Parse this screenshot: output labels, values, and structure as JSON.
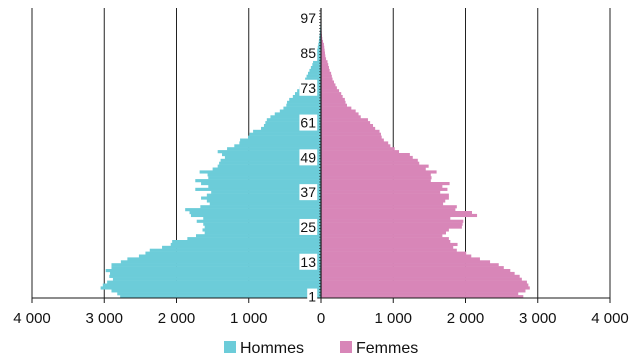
{
  "chart_data": {
    "type": "bar",
    "orientation": "horizontal",
    "subtype": "population-pyramid",
    "ages": [
      1,
      2,
      3,
      4,
      5,
      6,
      7,
      8,
      9,
      10,
      11,
      12,
      13,
      14,
      15,
      16,
      17,
      18,
      19,
      20,
      21,
      22,
      23,
      24,
      25,
      26,
      27,
      28,
      29,
      30,
      31,
      32,
      33,
      34,
      35,
      36,
      37,
      38,
      39,
      40,
      41,
      42,
      43,
      44,
      45,
      46,
      47,
      48,
      49,
      50,
      51,
      52,
      53,
      54,
      55,
      56,
      57,
      58,
      59,
      60,
      61,
      62,
      63,
      64,
      65,
      66,
      67,
      68,
      69,
      70,
      71,
      72,
      73,
      74,
      75,
      76,
      77,
      78,
      79,
      80,
      81,
      82,
      83,
      84,
      85,
      86,
      87,
      88,
      89,
      90,
      91,
      92,
      93,
      94,
      95,
      96,
      97,
      98,
      99,
      100
    ],
    "age_tick_labels": [
      "1",
      "13",
      "25",
      "37",
      "49",
      "61",
      "73",
      "85",
      "97"
    ],
    "x_tick_labels": [
      "4 000",
      "3 000",
      "2 000",
      "1 000",
      "0",
      "1 000",
      "2 000",
      "3 000",
      "4 000"
    ],
    "xlim": [
      -4000,
      4000
    ],
    "grid": true,
    "legend_position": "bottom",
    "series": [
      {
        "name": "Hommes",
        "color": "#6cccd9",
        "values": [
          2780,
          2820,
          2900,
          3050,
          3020,
          2960,
          2880,
          2930,
          2920,
          2980,
          2900,
          2900,
          2770,
          2680,
          2520,
          2430,
          2370,
          2200,
          2080,
          2060,
          1850,
          1730,
          1610,
          1640,
          1610,
          1630,
          1720,
          1630,
          1800,
          1820,
          1880,
          1670,
          1540,
          1580,
          1660,
          1580,
          1520,
          1740,
          1560,
          1660,
          1740,
          1560,
          1570,
          1680,
          1500,
          1430,
          1410,
          1390,
          1330,
          1370,
          1430,
          1300,
          1200,
          1130,
          1120,
          1010,
          990,
          940,
          830,
          790,
          770,
          750,
          700,
          640,
          570,
          520,
          480,
          470,
          440,
          390,
          360,
          330,
          300,
          270,
          250,
          220,
          200,
          180,
          160,
          140,
          120,
          110,
          90,
          80,
          65,
          55,
          45,
          38,
          30,
          25,
          20,
          15,
          12,
          10,
          8,
          6,
          5,
          4,
          3,
          2
        ]
      },
      {
        "name": "Femmes",
        "color": "#d886b8",
        "values": [
          2800,
          2730,
          2830,
          2890,
          2870,
          2850,
          2780,
          2750,
          2680,
          2620,
          2530,
          2460,
          2340,
          2200,
          2080,
          2010,
          1880,
          1830,
          1890,
          1790,
          1770,
          1680,
          1730,
          1770,
          1950,
          1960,
          1970,
          1790,
          2160,
          2090,
          1860,
          1880,
          1690,
          1720,
          1770,
          1770,
          1650,
          1750,
          1680,
          1780,
          1520,
          1530,
          1520,
          1600,
          1450,
          1490,
          1360,
          1340,
          1270,
          1230,
          1080,
          1020,
          960,
          930,
          870,
          840,
          830,
          810,
          750,
          720,
          680,
          650,
          550,
          520,
          480,
          420,
          360,
          340,
          330,
          300,
          280,
          250,
          220,
          200,
          180,
          160,
          150,
          140,
          120,
          110,
          100,
          90,
          70,
          60,
          55,
          50,
          45,
          40,
          28,
          18,
          14,
          10,
          8,
          6,
          5,
          4,
          3,
          2,
          1,
          1
        ]
      }
    ]
  }
}
